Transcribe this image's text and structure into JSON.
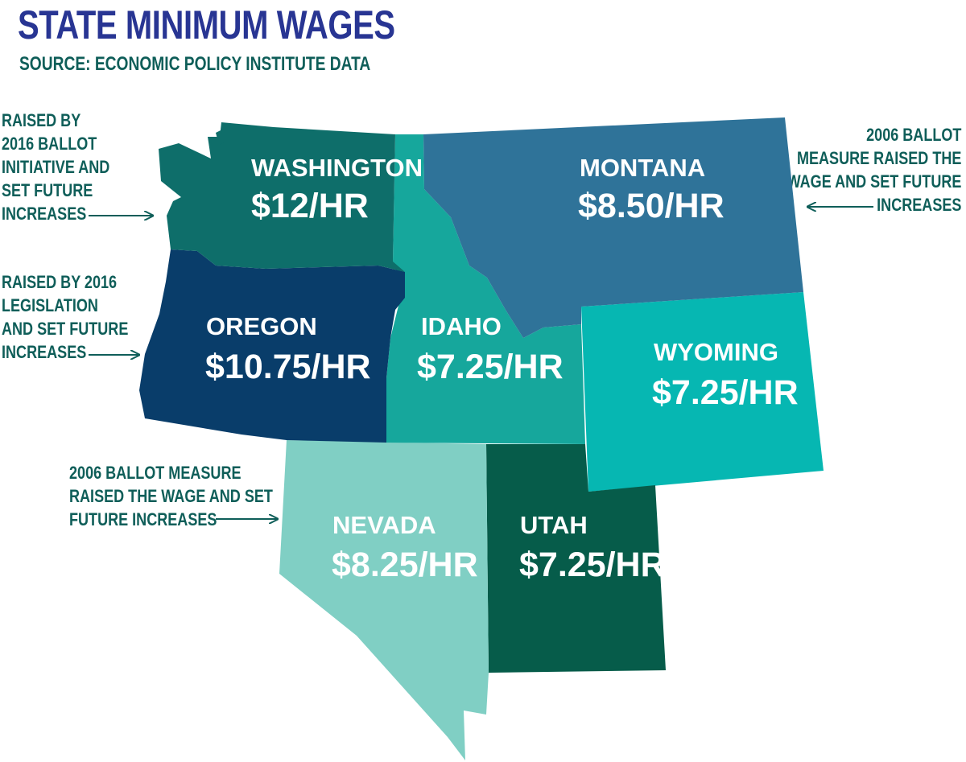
{
  "title": "STATE MINIMUM WAGES",
  "subtitle": "SOURCE: ECONOMIC POLICY INSTITUTE DATA",
  "states": {
    "washington": {
      "name": "WASHINGTON",
      "wage": "$12/HR",
      "color": "#0e6e6a"
    },
    "montana": {
      "name": "MONTANA",
      "wage": "$8.50/HR",
      "color": "#2f7399"
    },
    "oregon": {
      "name": "OREGON",
      "wage": "$10.75/HR",
      "color": "#093d6a"
    },
    "idaho": {
      "name": "IDAHO",
      "wage": "$7.25/HR",
      "color": "#16a79c"
    },
    "wyoming": {
      "name": "WYOMING",
      "wage": "$7.25/HR",
      "color": "#06b7b2"
    },
    "nevada": {
      "name": "NEVADA",
      "wage": "$8.25/HR",
      "color": "#80cfc4"
    },
    "utah": {
      "name": "UTAH",
      "wage": "$7.25/HR",
      "color": "#065c4a"
    }
  },
  "notes": {
    "washington": "RAISED BY\n2016 BALLOT\nINITIATIVE AND\nSET FUTURE\nINCREASES",
    "oregon": "RAISED BY 2016\nLEGISLATION\nAND SET FUTURE\nINCREASES",
    "montana": "2006 BALLOT\nMEASURE RAISED THE\nWAGE AND SET FUTURE\nINCREASES",
    "nevada": "2006 BALLOT MEASURE\nRAISED THE WAGE AND SET\nFUTURE INCREASES"
  },
  "colors": {
    "title": "#283593",
    "annotation": "#0f5e59",
    "label": "#ffffff"
  }
}
